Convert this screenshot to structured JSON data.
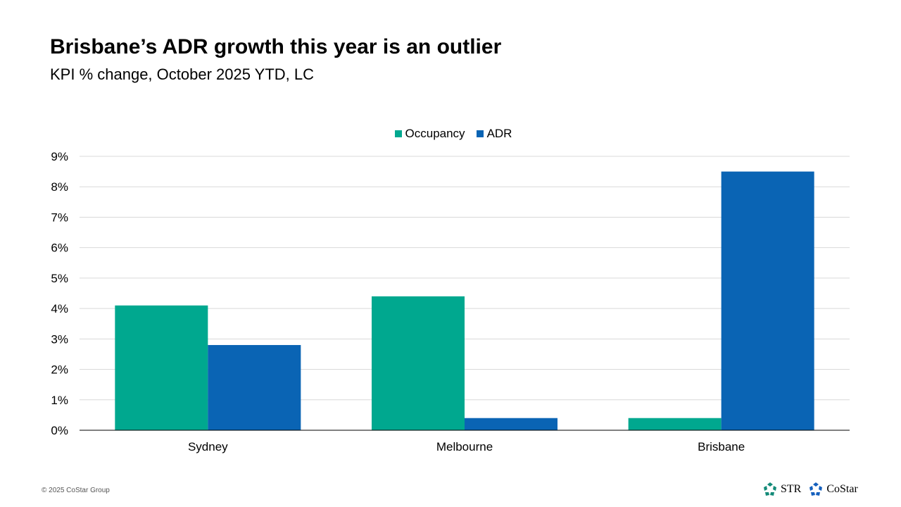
{
  "header": {
    "title": "Brisbane’s ADR growth this year is an outlier",
    "subtitle": "KPI % change, October 2025 YTD, LC"
  },
  "chart_data": {
    "type": "bar",
    "categories": [
      "Sydney",
      "Melbourne",
      "Brisbane"
    ],
    "series": [
      {
        "name": "Occupancy",
        "color": "#00A88F",
        "values": [
          4.1,
          4.4,
          0.4
        ]
      },
      {
        "name": "ADR",
        "color": "#0A64B4",
        "values": [
          2.8,
          0.4,
          8.5
        ]
      }
    ],
    "ylim": [
      0,
      9
    ],
    "yticks": [
      "0%",
      "1%",
      "2%",
      "3%",
      "4%",
      "5%",
      "6%",
      "7%",
      "8%",
      "9%"
    ],
    "grid": true,
    "legend": "top-center",
    "xlabel": "",
    "ylabel": ""
  },
  "footer": {
    "copyright": "© 2025 CoStar Group",
    "logos": [
      "STR",
      "CoStar"
    ]
  }
}
